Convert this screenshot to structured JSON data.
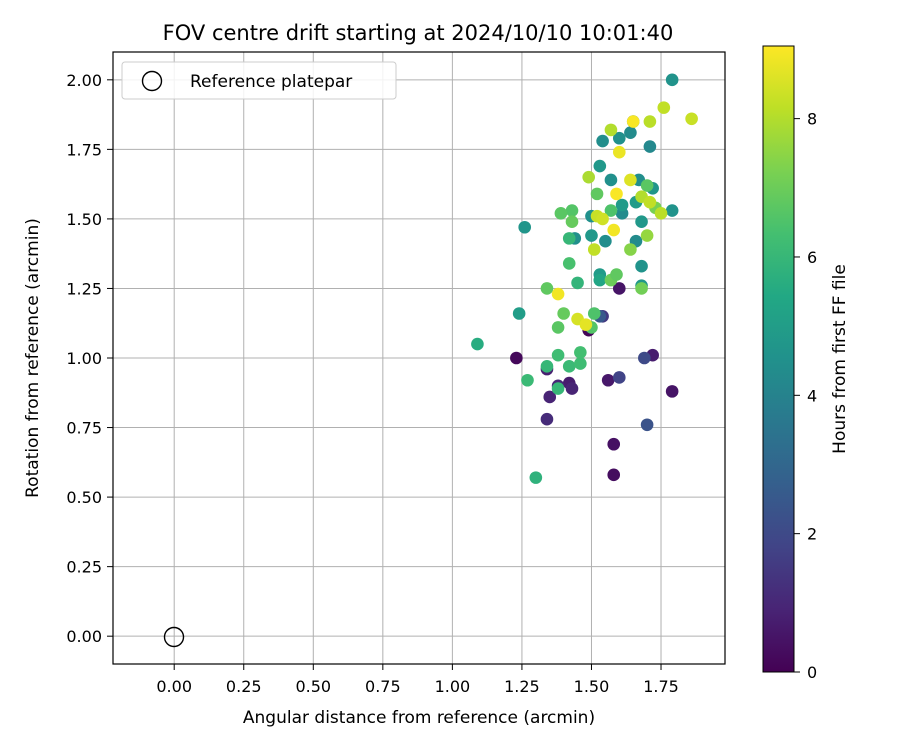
{
  "chart_data": {
    "type": "scatter",
    "title": "FOV centre drift starting at 2024/10/10 10:01:40",
    "xlabel": "Angular distance from reference (arcmin)",
    "ylabel": "Rotation from reference (arcmin)",
    "xlim": [
      -0.22,
      1.98
    ],
    "ylim": [
      -0.1,
      2.1
    ],
    "xticks": [
      "0.00",
      "0.25",
      "0.50",
      "0.75",
      "1.00",
      "1.25",
      "1.50",
      "1.75"
    ],
    "xtick_values": [
      0,
      0.25,
      0.5,
      0.75,
      1.0,
      1.25,
      1.5,
      1.75
    ],
    "yticks": [
      "0.00",
      "0.25",
      "0.50",
      "0.75",
      "1.00",
      "1.25",
      "1.50",
      "1.75",
      "2.00"
    ],
    "ytick_values": [
      0,
      0.25,
      0.5,
      0.75,
      1.0,
      1.25,
      1.5,
      1.75,
      2.0
    ],
    "grid": true,
    "legend": {
      "placement": "top-left",
      "entries": [
        "Reference platepar"
      ]
    },
    "reference_point": {
      "x": 0.0,
      "y": 0.0
    },
    "colorbar": {
      "label": "Hours from first FF file",
      "range": [
        0,
        9.05
      ],
      "ticks": [
        "0",
        "2",
        "4",
        "6",
        "8"
      ],
      "tick_values": [
        0,
        2,
        4,
        6,
        8
      ],
      "colormap": "viridis"
    },
    "points": [
      {
        "x": 1.49,
        "y": 1.1,
        "h": 0.1
      },
      {
        "x": 1.23,
        "y": 1.0,
        "h": 0.2
      },
      {
        "x": 1.58,
        "y": 0.58,
        "h": 0.3
      },
      {
        "x": 1.58,
        "y": 0.69,
        "h": 0.4
      },
      {
        "x": 1.6,
        "y": 1.25,
        "h": 0.5
      },
      {
        "x": 1.42,
        "y": 0.91,
        "h": 0.7
      },
      {
        "x": 1.56,
        "y": 0.92,
        "h": 0.6
      },
      {
        "x": 1.72,
        "y": 1.01,
        "h": 0.7
      },
      {
        "x": 1.79,
        "y": 0.88,
        "h": 0.5
      },
      {
        "x": 1.43,
        "y": 0.89,
        "h": 0.9
      },
      {
        "x": 1.34,
        "y": 0.96,
        "h": 0.8
      },
      {
        "x": 1.35,
        "y": 0.86,
        "h": 0.9
      },
      {
        "x": 1.34,
        "y": 0.78,
        "h": 1.1
      },
      {
        "x": 1.38,
        "y": 0.9,
        "h": 1.0
      },
      {
        "x": 1.54,
        "y": 1.15,
        "h": 1.5
      },
      {
        "x": 1.6,
        "y": 0.93,
        "h": 1.8
      },
      {
        "x": 1.69,
        "y": 1.0,
        "h": 2.0
      },
      {
        "x": 1.7,
        "y": 0.76,
        "h": 2.3
      },
      {
        "x": 1.53,
        "y": 1.15,
        "h": 2.5
      },
      {
        "x": 1.79,
        "y": 2.0,
        "h": 4.6
      },
      {
        "x": 1.65,
        "y": 1.85,
        "h": 4.0
      },
      {
        "x": 1.54,
        "y": 1.78,
        "h": 4.4
      },
      {
        "x": 1.64,
        "y": 1.81,
        "h": 4.3
      },
      {
        "x": 1.6,
        "y": 1.79,
        "h": 4.5
      },
      {
        "x": 1.71,
        "y": 1.76,
        "h": 4.2
      },
      {
        "x": 1.53,
        "y": 1.69,
        "h": 4.8
      },
      {
        "x": 1.57,
        "y": 1.64,
        "h": 4.5
      },
      {
        "x": 1.67,
        "y": 1.64,
        "h": 4.4
      },
      {
        "x": 1.72,
        "y": 1.61,
        "h": 4.7
      },
      {
        "x": 1.66,
        "y": 1.56,
        "h": 4.9
      },
      {
        "x": 1.61,
        "y": 1.52,
        "h": 4.3
      },
      {
        "x": 1.5,
        "y": 1.51,
        "h": 4.5
      },
      {
        "x": 1.68,
        "y": 1.49,
        "h": 4.8
      },
      {
        "x": 1.79,
        "y": 1.53,
        "h": 4.6
      },
      {
        "x": 1.61,
        "y": 1.55,
        "h": 4.9
      },
      {
        "x": 1.26,
        "y": 1.47,
        "h": 4.7
      },
      {
        "x": 1.44,
        "y": 1.43,
        "h": 4.5
      },
      {
        "x": 1.5,
        "y": 1.44,
        "h": 4.8
      },
      {
        "x": 1.55,
        "y": 1.42,
        "h": 4.4
      },
      {
        "x": 1.66,
        "y": 1.42,
        "h": 4.3
      },
      {
        "x": 1.68,
        "y": 1.33,
        "h": 4.6
      },
      {
        "x": 1.68,
        "y": 1.26,
        "h": 4.8
      },
      {
        "x": 1.53,
        "y": 1.3,
        "h": 4.9
      },
      {
        "x": 1.24,
        "y": 1.16,
        "h": 5.0
      },
      {
        "x": 1.53,
        "y": 1.28,
        "h": 5.3
      },
      {
        "x": 1.09,
        "y": 1.05,
        "h": 5.6
      },
      {
        "x": 1.3,
        "y": 0.57,
        "h": 5.8
      },
      {
        "x": 1.45,
        "y": 1.27,
        "h": 5.9
      },
      {
        "x": 1.38,
        "y": 1.01,
        "h": 6.2
      },
      {
        "x": 1.34,
        "y": 0.97,
        "h": 6.0
      },
      {
        "x": 1.27,
        "y": 0.92,
        "h": 6.1
      },
      {
        "x": 1.38,
        "y": 0.89,
        "h": 6.0
      },
      {
        "x": 1.42,
        "y": 0.97,
        "h": 6.1
      },
      {
        "x": 1.46,
        "y": 0.98,
        "h": 6.2
      },
      {
        "x": 1.46,
        "y": 1.02,
        "h": 6.3
      },
      {
        "x": 1.42,
        "y": 1.43,
        "h": 6.0
      },
      {
        "x": 1.42,
        "y": 1.34,
        "h": 6.4
      },
      {
        "x": 1.43,
        "y": 1.53,
        "h": 6.6
      },
      {
        "x": 1.52,
        "y": 1.59,
        "h": 6.8
      },
      {
        "x": 1.39,
        "y": 1.52,
        "h": 6.7
      },
      {
        "x": 1.43,
        "y": 1.49,
        "h": 6.9
      },
      {
        "x": 1.57,
        "y": 1.53,
        "h": 6.5
      },
      {
        "x": 1.7,
        "y": 1.62,
        "h": 6.7
      },
      {
        "x": 1.34,
        "y": 1.25,
        "h": 6.8
      },
      {
        "x": 1.38,
        "y": 1.11,
        "h": 6.7
      },
      {
        "x": 1.4,
        "y": 1.16,
        "h": 6.9
      },
      {
        "x": 1.51,
        "y": 1.16,
        "h": 6.5
      },
      {
        "x": 1.5,
        "y": 1.11,
        "h": 6.6
      },
      {
        "x": 1.57,
        "y": 1.28,
        "h": 7.0
      },
      {
        "x": 1.59,
        "y": 1.3,
        "h": 6.8
      },
      {
        "x": 1.68,
        "y": 1.25,
        "h": 7.1
      },
      {
        "x": 1.73,
        "y": 1.54,
        "h": 7.2
      },
      {
        "x": 1.64,
        "y": 1.39,
        "h": 7.4
      },
      {
        "x": 1.7,
        "y": 1.44,
        "h": 7.6
      },
      {
        "x": 1.49,
        "y": 1.65,
        "h": 7.9
      },
      {
        "x": 1.57,
        "y": 1.82,
        "h": 8.0
      },
      {
        "x": 1.71,
        "y": 1.85,
        "h": 8.1
      },
      {
        "x": 1.76,
        "y": 1.9,
        "h": 8.2
      },
      {
        "x": 1.86,
        "y": 1.86,
        "h": 8.3
      },
      {
        "x": 1.68,
        "y": 1.58,
        "h": 8.0
      },
      {
        "x": 1.71,
        "y": 1.56,
        "h": 8.2
      },
      {
        "x": 1.75,
        "y": 1.52,
        "h": 8.1
      },
      {
        "x": 1.52,
        "y": 1.51,
        "h": 8.3
      },
      {
        "x": 1.54,
        "y": 1.5,
        "h": 8.4
      },
      {
        "x": 1.51,
        "y": 1.39,
        "h": 8.2
      },
      {
        "x": 1.64,
        "y": 1.64,
        "h": 8.6
      },
      {
        "x": 1.6,
        "y": 1.74,
        "h": 8.8
      },
      {
        "x": 1.65,
        "y": 1.85,
        "h": 9.0
      },
      {
        "x": 1.59,
        "y": 1.59,
        "h": 9.0
      },
      {
        "x": 1.58,
        "y": 1.46,
        "h": 8.9
      },
      {
        "x": 1.45,
        "y": 1.14,
        "h": 8.5
      },
      {
        "x": 1.48,
        "y": 1.12,
        "h": 8.7
      },
      {
        "x": 1.38,
        "y": 1.23,
        "h": 8.9
      }
    ]
  }
}
